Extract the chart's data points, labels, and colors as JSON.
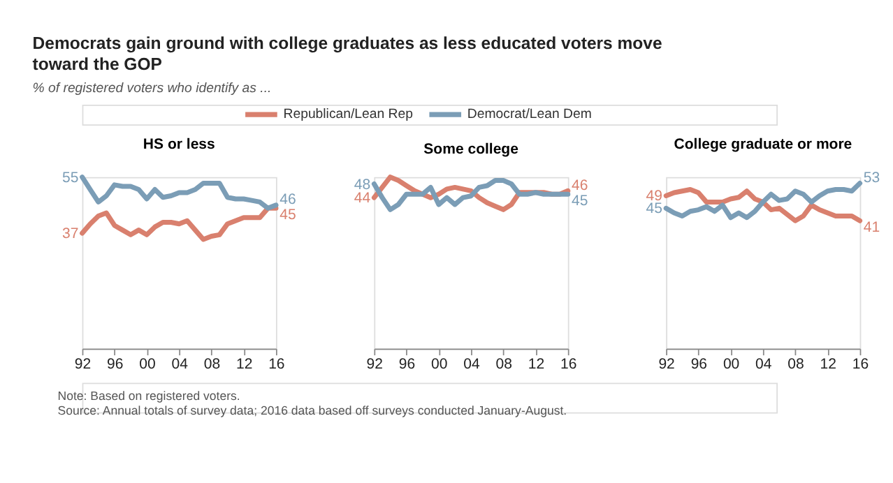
{
  "chart_data": [
    {
      "type": "line",
      "title": "HS or less",
      "legend": "top",
      "tick_labels": "x",
      "x": [
        1992,
        1993,
        1994,
        1995,
        1996,
        1997,
        1998,
        1999,
        2000,
        2001,
        2002,
        2003,
        2004,
        2005,
        2006,
        2007,
        2008,
        2009,
        2010,
        2011,
        2012,
        2013,
        2014,
        2015,
        2016
      ],
      "xlim": [
        1992,
        2016
      ],
      "xticks": [
        {
          "value": 1992,
          "label": "92"
        },
        {
          "value": 1996,
          "label": "96"
        },
        {
          "value": 2000,
          "label": "00"
        },
        {
          "value": 2004,
          "label": "04"
        },
        {
          "value": 2008,
          "label": "08"
        },
        {
          "value": 2012,
          "label": "12"
        },
        {
          "value": 2016,
          "label": "16"
        }
      ],
      "series": [
        {
          "name": "Republican/Lean Rep",
          "color": "#d9806e",
          "values": [
            37,
            40,
            42.5,
            43.5,
            39.5,
            38,
            36.5,
            38,
            36.5,
            39,
            40.5,
            40.5,
            40,
            41,
            38,
            35,
            36,
            36.5,
            40,
            41,
            42,
            42,
            42,
            45,
            45
          ],
          "value_labels": [
            "37",
            null,
            null,
            null,
            null,
            null,
            null,
            null,
            null,
            null,
            null,
            null,
            null,
            null,
            null,
            null,
            null,
            null,
            null,
            null,
            null,
            null,
            null,
            null,
            "45"
          ]
        },
        {
          "name": "Democrat/Lean Dem",
          "color": "#7b9db6",
          "values": [
            55,
            51,
            47,
            49,
            52.5,
            52,
            52,
            51,
            48,
            51,
            48.5,
            49,
            50,
            50,
            51,
            53,
            53,
            53,
            48.5,
            48,
            48,
            47.5,
            47,
            45,
            46
          ],
          "value_labels": [
            "55",
            null,
            null,
            null,
            null,
            null,
            null,
            null,
            null,
            null,
            null,
            null,
            null,
            null,
            null,
            null,
            null,
            null,
            null,
            null,
            null,
            null,
            null,
            null,
            "46"
          ]
        }
      ]
    },
    {
      "type": "line",
      "title": "Some college",
      "tick_labels": "x",
      "x": [
        1992,
        1993,
        1994,
        1995,
        1996,
        1997,
        1998,
        1999,
        2000,
        2001,
        2002,
        2003,
        2004,
        2005,
        2006,
        2007,
        2008,
        2009,
        2010,
        2011,
        2012,
        2013,
        2014,
        2015,
        2016
      ],
      "xlim": [
        1992,
        2016
      ],
      "xticks": [
        {
          "value": 1992,
          "label": "92"
        },
        {
          "value": 1996,
          "label": "96"
        },
        {
          "value": 2000,
          "label": "00"
        },
        {
          "value": 2004,
          "label": "04"
        },
        {
          "value": 2008,
          "label": "08"
        },
        {
          "value": 2012,
          "label": "12"
        },
        {
          "value": 2016,
          "label": "16"
        }
      ],
      "series": [
        {
          "color": "#d9806e",
          "values": [
            44,
            47,
            50,
            49,
            47.5,
            46,
            45,
            44,
            45,
            46.5,
            47,
            46.5,
            46,
            44,
            42.5,
            41.5,
            40.5,
            42,
            45.5,
            45.5,
            45.5,
            45.5,
            45,
            45,
            46
          ],
          "value_labels": [
            "44",
            null,
            null,
            null,
            null,
            null,
            null,
            null,
            null,
            null,
            null,
            null,
            null,
            null,
            null,
            null,
            null,
            null,
            null,
            null,
            null,
            null,
            null,
            null,
            "46"
          ]
        },
        {
          "color": "#7b9db6",
          "values": [
            48,
            44,
            40.5,
            42,
            45,
            45,
            45,
            47,
            42,
            44,
            42,
            44,
            44.5,
            47,
            47.5,
            49,
            49,
            48,
            45,
            45,
            45.5,
            45,
            45,
            45,
            45
          ],
          "value_labels": [
            "48",
            null,
            null,
            null,
            null,
            null,
            null,
            null,
            null,
            null,
            null,
            null,
            null,
            null,
            null,
            null,
            null,
            null,
            null,
            null,
            null,
            null,
            null,
            null,
            "45"
          ]
        }
      ]
    },
    {
      "type": "line",
      "title": "College graduate or more",
      "tick_labels": "x",
      "x": [
        1992,
        1993,
        1994,
        1995,
        1996,
        1997,
        1998,
        1999,
        2000,
        2001,
        2002,
        2003,
        2004,
        2005,
        2006,
        2007,
        2008,
        2009,
        2010,
        2011,
        2012,
        2013,
        2014,
        2015,
        2016
      ],
      "xlim": [
        1992,
        2016
      ],
      "xticks": [
        {
          "value": 1992,
          "label": "92"
        },
        {
          "value": 1996,
          "label": "96"
        },
        {
          "value": 2000,
          "label": "00"
        },
        {
          "value": 2004,
          "label": "04"
        },
        {
          "value": 2008,
          "label": "08"
        },
        {
          "value": 2012,
          "label": "12"
        },
        {
          "value": 2016,
          "label": "16"
        }
      ],
      "series": [
        {
          "color": "#d9806e",
          "values": [
            49,
            50,
            50.5,
            51,
            50,
            47,
            47,
            47,
            48,
            48.5,
            50.5,
            48,
            47,
            44.5,
            45,
            43,
            41,
            42.5,
            46,
            44.5,
            43.5,
            42.5,
            42.5,
            42.5,
            41
          ],
          "value_labels": [
            "49",
            null,
            null,
            null,
            null,
            null,
            null,
            null,
            null,
            null,
            null,
            null,
            null,
            null,
            null,
            null,
            null,
            null,
            null,
            null,
            null,
            null,
            null,
            null,
            "41"
          ]
        },
        {
          "color": "#7b9db6",
          "values": [
            45,
            43.5,
            42.5,
            44,
            44.5,
            45.5,
            44,
            46,
            42,
            43.5,
            42,
            44,
            47,
            49.5,
            47.5,
            48,
            50.5,
            49.5,
            47,
            49,
            50.5,
            51,
            51,
            50.5,
            53
          ],
          "value_labels": [
            "45",
            null,
            null,
            null,
            null,
            null,
            null,
            null,
            null,
            null,
            null,
            null,
            null,
            null,
            null,
            null,
            null,
            null,
            null,
            null,
            null,
            null,
            null,
            null,
            "53"
          ]
        }
      ]
    },
    {
      "type": "other",
      "title": "Democrats gain ground with college graduates as less educated voters move toward the GOP",
      "subtitle": "% of registered voters who identify as ...",
      "annotations": [
        "Note: Based on registered voters.",
        "Source: Annual totals of survey data; 2016 data based off surveys conducted January-August."
      ]
    }
  ]
}
